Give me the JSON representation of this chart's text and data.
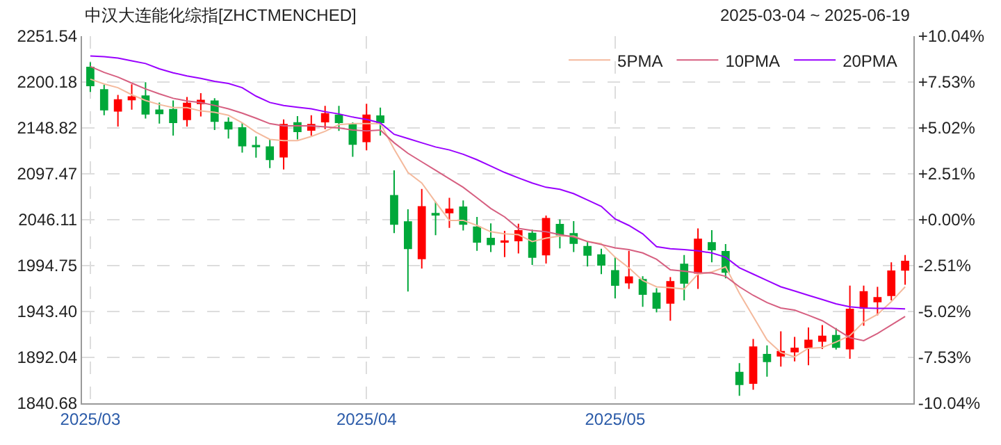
{
  "chart_data": {
    "type": "candlestick",
    "title": "中汉大连能化综指[ZHCTMENCHED]",
    "subtitle": "2025-03-04 ~ 2025-06-19",
    "categories": [
      "2025/03",
      null,
      null,
      null,
      null,
      null,
      null,
      null,
      null,
      null,
      null,
      null,
      null,
      null,
      null,
      null,
      null,
      null,
      null,
      null,
      "2025/04",
      null,
      null,
      null,
      null,
      null,
      null,
      null,
      null,
      null,
      null,
      null,
      null,
      null,
      null,
      null,
      null,
      null,
      "2025/05",
      null,
      null,
      null,
      null,
      null,
      null,
      null,
      null,
      null,
      null,
      null,
      null,
      null,
      null,
      null,
      null,
      null,
      null,
      null,
      null,
      null
    ],
    "ohlc": [
      [
        2216.6,
        2222.3,
        2189.1,
        2196.2
      ],
      [
        2191.5,
        2197.2,
        2163.0,
        2169.2
      ],
      [
        2167.8,
        2185.8,
        2150.3,
        2180.1
      ],
      [
        2180.6,
        2197.7,
        2169.2,
        2183.4
      ],
      [
        2184.4,
        2200.0,
        2159.3,
        2164.5
      ],
      [
        2168.7,
        2177.3,
        2153.6,
        2165.0
      ],
      [
        2169.2,
        2179.6,
        2140.3,
        2155.0
      ],
      [
        2158.3,
        2183.4,
        2150.3,
        2176.3
      ],
      [
        2176.3,
        2187.7,
        2161.6,
        2179.6
      ],
      [
        2178.7,
        2182.0,
        2146.5,
        2156.4
      ],
      [
        2155.0,
        2160.7,
        2137.0,
        2147.9
      ],
      [
        2148.8,
        2154.5,
        2121.3,
        2128.9
      ],
      [
        2128.9,
        2139.3,
        2115.6,
        2128.0
      ],
      [
        2127.5,
        2136.0,
        2103.8,
        2113.7
      ],
      [
        2116.6,
        2158.3,
        2102.3,
        2152.6
      ],
      [
        2154.5,
        2162.1,
        2136.0,
        2145.0
      ],
      [
        2146.4,
        2163.0,
        2140.3,
        2152.6
      ],
      [
        2155.9,
        2173.5,
        2147.4,
        2164.5
      ],
      [
        2163.0,
        2173.5,
        2145.5,
        2155.0
      ],
      [
        2152.6,
        2155.0,
        2116.6,
        2130.8
      ],
      [
        2133.6,
        2175.8,
        2123.7,
        2163.0
      ],
      [
        2162.1,
        2171.6,
        2140.3,
        2155.0
      ],
      [
        2072.9,
        2101.4,
        2031.2,
        2041.2
      ],
      [
        2043.5,
        2057.8,
        1965.8,
        2014.1
      ],
      [
        2002.8,
        2080.5,
        1991.4,
        2060.6
      ],
      [
        2053.0,
        2066.3,
        2028.8,
        2051.6
      ],
      [
        2054.0,
        2070.6,
        2036.9,
        2057.8
      ],
      [
        2060.1,
        2067.7,
        2034.1,
        2041.2
      ],
      [
        2037.8,
        2049.2,
        2011.3,
        2021.2
      ],
      [
        2025.0,
        2042.1,
        2009.9,
        2018.4
      ],
      [
        2021.2,
        2033.6,
        2004.2,
        2022.2
      ],
      [
        2022.7,
        2041.6,
        2008.4,
        2033.6
      ],
      [
        2030.7,
        2035.0,
        1995.6,
        2004.2
      ],
      [
        2007.0,
        2050.7,
        1997.1,
        2047.3
      ],
      [
        2040.7,
        2046.4,
        2014.1,
        2029.3
      ],
      [
        2030.3,
        2044.5,
        2009.9,
        2019.8
      ],
      [
        2016.0,
        2021.7,
        1993.7,
        2006.6
      ],
      [
        2006.6,
        2013.7,
        1985.2,
        1995.6
      ],
      [
        1989.0,
        2004.2,
        1958.2,
        1972.9
      ],
      [
        1975.7,
        2011.3,
        1968.6,
        1981.9
      ],
      [
        1979.0,
        1982.8,
        1948.7,
        1962.9
      ],
      [
        1963.9,
        1969.5,
        1942.5,
        1947.3
      ],
      [
        1953.0,
        1981.9,
        1933.0,
        1976.7
      ],
      [
        1996.1,
        2006.6,
        1955.8,
        1975.3
      ],
      [
        1986.6,
        2036.4,
        1968.6,
        2024.1
      ],
      [
        2020.3,
        2034.5,
        1998.5,
        2012.7
      ],
      [
        2010.4,
        2018.9,
        1980.5,
        1987.6
      ],
      [
        1875.2,
        1885.6,
        1849.1,
        1861.9
      ],
      [
        1863.3,
        1912.6,
        1855.8,
        1903.6
      ],
      [
        1895.1,
        1905.5,
        1870.4,
        1887.5
      ],
      [
        1893.7,
        1921.2,
        1881.8,
        1898.4
      ],
      [
        1898.4,
        1915.0,
        1887.5,
        1902.2
      ],
      [
        1903.2,
        1925.4,
        1883.3,
        1911.2
      ],
      [
        1910.3,
        1928.3,
        1901.3,
        1915.5
      ],
      [
        1916.4,
        1925.0,
        1900.8,
        1903.6
      ],
      [
        1901.7,
        1972.4,
        1890.4,
        1945.8
      ],
      [
        1947.3,
        1972.4,
        1927.4,
        1965.3
      ],
      [
        1954.4,
        1971.0,
        1939.2,
        1958.7
      ],
      [
        1961.5,
        1998.5,
        1955.8,
        1988.5
      ],
      [
        1989.9,
        2006.6,
        1973.4,
        1999.4
      ]
    ],
    "colors": [
      "#00a83a",
      "#00a83a",
      "#ff0000",
      "#ff0000",
      "#00a83a",
      "#00a83a",
      "#00a83a",
      "#ff0000",
      "#ff0000",
      "#00a83a",
      "#00a83a",
      "#00a83a",
      "#00a83a",
      "#00a83a",
      "#ff0000",
      "#00a83a",
      "#ff0000",
      "#ff0000",
      "#00a83a",
      "#00a83a",
      "#ff0000",
      "#00a83a",
      "#00a83a",
      "#00a83a",
      "#ff0000",
      "#00a83a",
      "#ff0000",
      "#00a83a",
      "#00a83a",
      "#00a83a",
      "#ff0000",
      "#ff0000",
      "#00a83a",
      "#ff0000",
      "#00a83a",
      "#00a83a",
      "#00a83a",
      "#00a83a",
      "#00a83a",
      "#ff0000",
      "#00a83a",
      "#00a83a",
      "#ff0000",
      "#00a83a",
      "#ff0000",
      "#00a83a",
      "#00a83a",
      "#00a83a",
      "#ff0000",
      "#00a83a",
      "#ff0000",
      "#ff0000",
      "#ff0000",
      "#ff0000",
      "#00a83a",
      "#ff0000",
      "#ff0000",
      "#ff0000",
      "#ff0000",
      "#ff0000"
    ],
    "series": [
      {
        "type": "line",
        "name": "5PMA",
        "color": "#f4b99c",
        "values": [
          2203.4,
          2198,
          2193.9,
          2186,
          2179.6,
          2175,
          2171.6,
          2171.6,
          2167.8,
          2166.4,
          2163.0,
          2154.5,
          2144.1,
          2136.0,
          2134.6,
          2134.6,
          2139.3,
          2145.0,
          2152.6,
          2153.6,
          2153.6,
          2153.6,
          2125.1,
          2099.0,
          2087.2,
          2065.8,
          2045.4,
          2045.4,
          2039.7,
          2032.6,
          2030.3,
          2029.3,
          2021.7,
          2025.5,
          2027.9,
          2027.9,
          2021.7,
          2019.3,
          2004.2,
          1992.3,
          1978.1,
          1971.0,
          1970.0,
          1968.6,
          1985.2,
          1987.6,
          1993.3,
          1963.9,
          1937.8,
          1911.7,
          1897.5,
          1892.7,
          1902.2,
          1903.2,
          1909.3,
          1916.4,
          1931.6,
          1940.2,
          1954.4,
          1971.0
        ]
      },
      {
        "type": "line",
        "name": "10PMA",
        "color": "#d65f80",
        "values": [
          2217.6,
          2211,
          2205.7,
          2199,
          2192.5,
          2187,
          2182.0,
          2179,
          2177.3,
          2174,
          2170.2,
          2165.4,
          2159.7,
          2153.6,
          2151.2,
          2151.2,
          2151.2,
          2150,
          2148.8,
          2146.5,
          2145.5,
          2146.4,
          2132.2,
          2120.4,
          2110.9,
          2101.4,
          2091.9,
          2082.4,
          2070.6,
          2058.7,
          2049.2,
          2036.4,
          2034.1,
          2032.6,
          2029.3,
          2026.9,
          2021.7,
          2018.4,
          2014.6,
          2012.7,
          2008.9,
          2001.8,
          1990.0,
          1988.5,
          1986.6,
          1986.6,
          1982.8,
          1971.0,
          1961.5,
          1953.4,
          1947.3,
          1944.9,
          1939.2,
          1933.1,
          1923.6,
          1914.1,
          1910.8,
          1918.8,
          1928.3,
          1937.8
        ]
      },
      {
        "type": "line",
        "name": "20PMA",
        "color": "#9900ff",
        "values": [
          2229.4,
          2228.5,
          2227.1,
          2224,
          2220.9,
          2215,
          2210.5,
          2207,
          2204.3,
          2201,
          2198.6,
          2193.9,
          2184.4,
          2177.3,
          2174.0,
          2172,
          2170.2,
          2167,
          2164.5,
          2161,
          2158.3,
          2154.5,
          2141.7,
          2136.9,
          2132.2,
          2127.5,
          2124.2,
          2119.4,
          2113.2,
          2106.1,
          2099.0,
          2092.9,
          2087.2,
          2082.4,
          2080.1,
          2075.3,
          2068.2,
          2061.1,
          2046.9,
          2039.7,
          2030.3,
          2016.0,
          2013.7,
          2012.7,
          2011.3,
          2008.9,
          2004.2,
          1992.3,
          1985.2,
          1978.1,
          1971.0,
          1966.3,
          1961.5,
          1956.8,
          1952.0,
          1948.7,
          1947.3,
          1946.8,
          1946.8,
          1946.3
        ]
      }
    ],
    "ylim": [
      1840.68,
      2251.54
    ],
    "yticks": [
      1840.68,
      1892.04,
      {
        "value": 1943.4,
        "label": "1943.40"
      },
      1994.75,
      2046.11,
      2097.47,
      2148.82,
      2200.18,
      2251.54
    ],
    "y2lim": [
      -10.04,
      10.04
    ],
    "y2ticks": [
      {
        "value": -10.04,
        "label": "-10.04%"
      },
      {
        "value": -7.53,
        "label": "-7.53%"
      },
      {
        "value": -5.02,
        "label": "-5.02%"
      },
      {
        "value": -2.51,
        "label": "-2.51%"
      },
      {
        "value": 0,
        "label": "+0.00%"
      },
      {
        "value": 2.51,
        "label": "+2.51%"
      },
      {
        "value": 5.02,
        "label": "+5.02%"
      },
      {
        "value": 7.53,
        "label": "+7.53%"
      },
      {
        "value": 10.04,
        "label": "+10.04%"
      }
    ],
    "grid": true,
    "legend": "top right",
    "line_style": "solid",
    "marker": "none"
  }
}
